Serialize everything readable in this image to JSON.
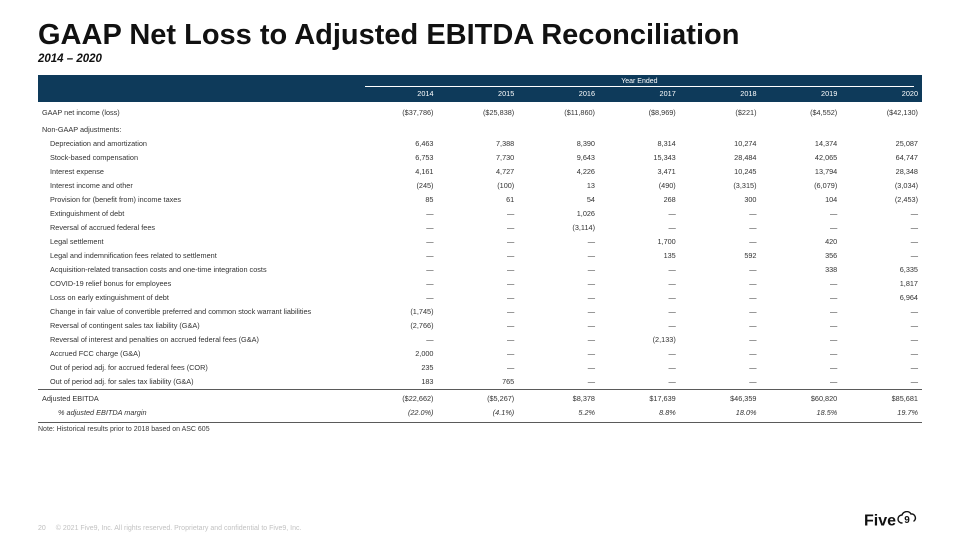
{
  "title": "GAAP Net Loss to Adjusted EBITDA Reconciliation",
  "subtitle": "2014 – 2020",
  "header_span_label": "Year Ended",
  "years": [
    "2014",
    "2015",
    "2016",
    "2017",
    "2018",
    "2019",
    "2020"
  ],
  "rows": [
    {
      "label": "GAAP net income (loss)",
      "indent": 0,
      "vals": [
        "($37,786)",
        "($25,838)",
        "($11,860)",
        "($8,969)",
        "($221)",
        "($4,552)",
        "($42,130)"
      ],
      "section_top": true
    },
    {
      "label": "Non-GAAP adjustments:",
      "indent": 0,
      "vals": [
        "",
        "",
        "",
        "",
        "",
        "",
        ""
      ],
      "section_top": true
    },
    {
      "label": "Depreciation and amortization",
      "indent": 1,
      "vals": [
        "6,463",
        "7,388",
        "8,390",
        "8,314",
        "10,274",
        "14,374",
        "25,087"
      ]
    },
    {
      "label": "Stock-based compensation",
      "indent": 1,
      "vals": [
        "6,753",
        "7,730",
        "9,643",
        "15,343",
        "28,484",
        "42,065",
        "64,747"
      ]
    },
    {
      "label": "Interest expense",
      "indent": 1,
      "vals": [
        "4,161",
        "4,727",
        "4,226",
        "3,471",
        "10,245",
        "13,794",
        "28,348"
      ]
    },
    {
      "label": "Interest income and other",
      "indent": 1,
      "vals": [
        "(245)",
        "(100)",
        "13",
        "(490)",
        "(3,315)",
        "(6,079)",
        "(3,034)"
      ]
    },
    {
      "label": "Provision for (benefit from) income taxes",
      "indent": 1,
      "vals": [
        "85",
        "61",
        "54",
        "268",
        "300",
        "104",
        "(2,453)"
      ]
    },
    {
      "label": "Extinguishment of debt",
      "indent": 1,
      "vals": [
        "—",
        "—",
        "1,026",
        "—",
        "—",
        "—",
        "—"
      ]
    },
    {
      "label": "Reversal of accrued federal fees",
      "indent": 1,
      "vals": [
        "—",
        "—",
        "(3,114)",
        "—",
        "—",
        "—",
        "—"
      ]
    },
    {
      "label": "Legal settlement",
      "indent": 1,
      "vals": [
        "—",
        "—",
        "—",
        "1,700",
        "—",
        "420",
        "—"
      ]
    },
    {
      "label": "Legal and indemnification fees related to settlement",
      "indent": 1,
      "vals": [
        "—",
        "—",
        "—",
        "135",
        "592",
        "356",
        "—"
      ]
    },
    {
      "label": "Acquisition-related transaction costs and one-time integration costs",
      "indent": 1,
      "vals": [
        "—",
        "—",
        "—",
        "—",
        "—",
        "338",
        "6,335"
      ]
    },
    {
      "label": "COVID-19 relief bonus for employees",
      "indent": 1,
      "vals": [
        "—",
        "—",
        "—",
        "—",
        "—",
        "—",
        "1,817"
      ]
    },
    {
      "label": "Loss on early extinguishment of debt",
      "indent": 1,
      "vals": [
        "—",
        "—",
        "—",
        "—",
        "—",
        "—",
        "6,964"
      ]
    },
    {
      "label": "Change in fair value of convertible preferred and common stock warrant liabilities",
      "indent": 1,
      "vals": [
        "(1,745)",
        "—",
        "—",
        "—",
        "—",
        "—",
        "—"
      ]
    },
    {
      "label": "Reversal of contingent sales tax liability (G&A)",
      "indent": 1,
      "vals": [
        "(2,766)",
        "—",
        "—",
        "—",
        "—",
        "—",
        "—"
      ]
    },
    {
      "label": "Reversal of interest and penalties on accrued federal fees (G&A)",
      "indent": 1,
      "vals": [
        "—",
        "—",
        "—",
        "(2,133)",
        "—",
        "—",
        "—"
      ]
    },
    {
      "label": "Accrued FCC charge (G&A)",
      "indent": 1,
      "vals": [
        "2,000",
        "—",
        "—",
        "—",
        "—",
        "—",
        "—"
      ]
    },
    {
      "label": "Out of period adj. for accrued federal fees (COR)",
      "indent": 1,
      "vals": [
        "235",
        "—",
        "—",
        "—",
        "—",
        "—",
        "—"
      ]
    },
    {
      "label": "Out of period adj. for sales tax liability (G&A)",
      "indent": 1,
      "vals": [
        "183",
        "765",
        "—",
        "—",
        "—",
        "—",
        "—"
      ]
    },
    {
      "label": "Adjusted EBITDA",
      "indent": 0,
      "vals": [
        "($22,662)",
        "($5,267)",
        "$8,378",
        "$17,639",
        "$46,359",
        "$60,820",
        "$85,681"
      ],
      "sum": true
    },
    {
      "label": "% adjusted EBITDA margin",
      "indent": 2,
      "vals": [
        "(22.0%)",
        "(4.1%)",
        "5.2%",
        "8.8%",
        "18.0%",
        "18.5%",
        "19.7%"
      ],
      "italic": true
    }
  ],
  "note": "Note: Historical results prior to 2018 based on ASC 605",
  "footer": {
    "page": "20",
    "copyright": "© 2021 Five9, Inc. All rights reserved. Proprietary and confidential to Five9, Inc.",
    "logo_text": "Five"
  },
  "colors": {
    "header_bg": "#0e3a5a",
    "text": "#323232",
    "footer_text": "#c2c2c2"
  }
}
